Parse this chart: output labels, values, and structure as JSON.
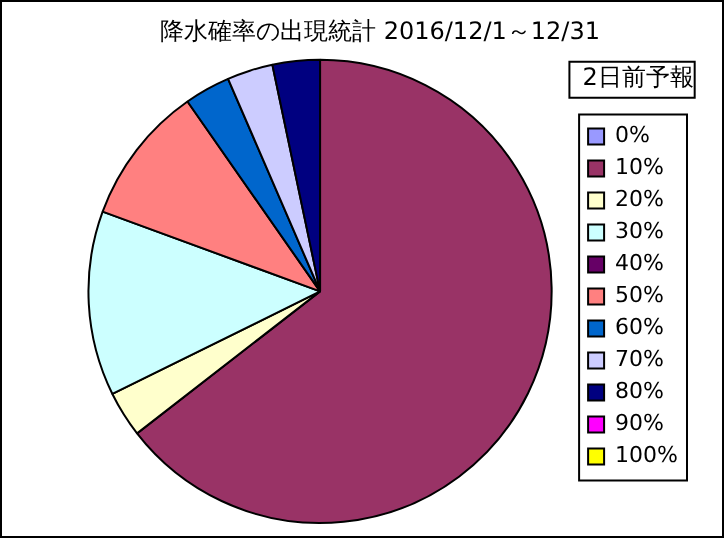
{
  "chart_data": {
    "type": "pie",
    "title": "降水確率の出現統計 2016/12/1～12/31",
    "legend_title": "2日前予報",
    "categories": [
      "0%",
      "10%",
      "20%",
      "30%",
      "40%",
      "50%",
      "60%",
      "70%",
      "80%",
      "90%",
      "100%"
    ],
    "values": [
      0,
      64.5,
      3.2,
      12.9,
      0,
      9.7,
      3.2,
      3.2,
      3.3,
      0,
      0
    ],
    "colors": [
      "#9999ff",
      "#993366",
      "#ffffcc",
      "#ccffff",
      "#660066",
      "#ff8080",
      "#0066cc",
      "#ccccff",
      "#000080",
      "#ff00ff",
      "#ffff00"
    ],
    "legend": "right"
  }
}
